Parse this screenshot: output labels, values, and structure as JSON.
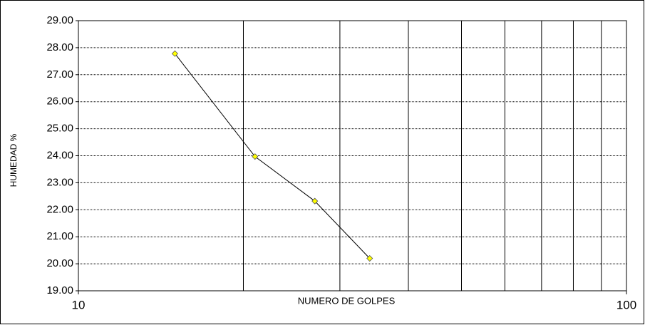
{
  "chart_data": {
    "type": "line",
    "x_label": "NUMERO DE GOLPES",
    "y_label": "HUMEDAD %",
    "x": [
      15,
      21,
      27,
      34
    ],
    "series": [
      {
        "color": "#ffff00",
        "values": [
          27.78,
          23.97,
          22.32,
          20.2
        ]
      }
    ],
    "xscale": "log",
    "xlim": [
      10,
      100
    ],
    "xticks": [
      10,
      100
    ],
    "xminorticks": [
      20,
      30,
      40,
      50,
      60,
      70,
      80,
      90
    ],
    "ylim": [
      19,
      29
    ],
    "yticks": [
      {
        "value": 19,
        "label": "19.00"
      },
      {
        "value": 20,
        "label": "20.00"
      },
      {
        "value": 21,
        "label": "21.00"
      },
      {
        "value": 22,
        "label": "22.00"
      },
      {
        "value": 23,
        "label": "23.00"
      },
      {
        "value": 24,
        "label": "24.00"
      },
      {
        "value": 25,
        "label": "25.00"
      },
      {
        "value": 26,
        "label": "26.00"
      },
      {
        "value": 27,
        "label": "27.00"
      },
      {
        "value": 28,
        "label": "28.00"
      },
      {
        "value": 29,
        "label": "29.00"
      }
    ],
    "grid": true
  }
}
